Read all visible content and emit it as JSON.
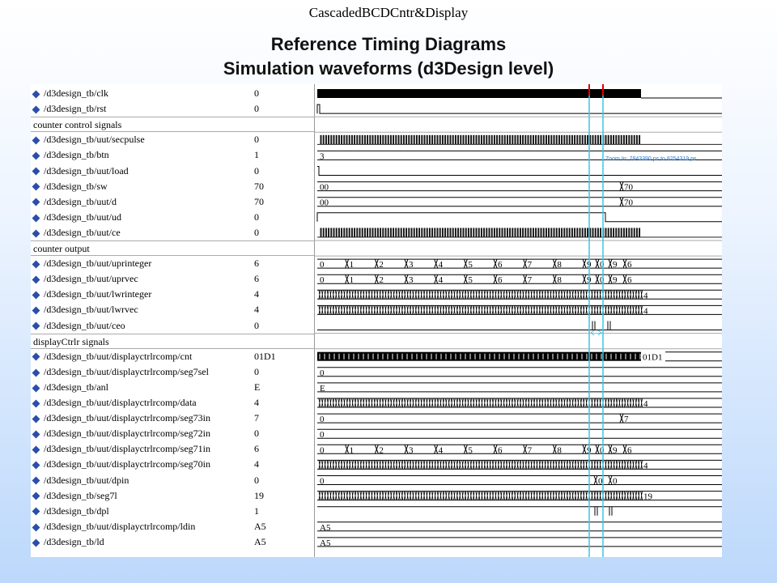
{
  "header_title": "CascadedBCDCntr&Display",
  "title_line1": "Reference Timing Diagrams",
  "title_line2": "Simulation waveforms (d3Design level)",
  "zoom_label": "Zoom In: 7843390 ps to 8254319 ps",
  "rows": [
    {
      "type": "signal",
      "name": "/d3design_tb/clk",
      "value": "0",
      "wave": "clk"
    },
    {
      "type": "signal",
      "name": "/d3design_tb/rst",
      "value": "0",
      "wave": "rst"
    },
    {
      "type": "section",
      "name": "counter control signals"
    },
    {
      "type": "signal",
      "name": "/d3design_tb/uut/secpulse",
      "value": "0",
      "wave": "pulse"
    },
    {
      "type": "signal",
      "name": "/d3design_tb/btn",
      "value": "1",
      "wave": "bus",
      "labels": [
        "3"
      ]
    },
    {
      "type": "signal",
      "name": "/d3design_tb/uut/load",
      "value": "0",
      "wave": "low"
    },
    {
      "type": "signal",
      "name": "/d3design_tb/sw",
      "value": "70",
      "wave": "bus",
      "labels": [
        "00",
        "70"
      ]
    },
    {
      "type": "signal",
      "name": "/d3design_tb/uut/d",
      "value": "70",
      "wave": "bus",
      "labels": [
        "00",
        "70"
      ]
    },
    {
      "type": "signal",
      "name": "/d3design_tb/uut/ud",
      "value": "0",
      "wave": "ud"
    },
    {
      "type": "signal",
      "name": "/d3design_tb/uut/ce",
      "value": "0",
      "wave": "pulse"
    },
    {
      "type": "section",
      "name": "counter output"
    },
    {
      "type": "signal",
      "name": "/d3design_tb/uut/uprinteger",
      "value": "6",
      "wave": "bus",
      "labels": [
        "0",
        "1",
        "2",
        "3",
        "4",
        "5",
        "6",
        "7",
        "8",
        "9",
        "0",
        "9",
        "6"
      ]
    },
    {
      "type": "signal",
      "name": "/d3design_tb/uut/uprvec",
      "value": "6",
      "wave": "bus",
      "labels": [
        "0",
        "1",
        "2",
        "3",
        "4",
        "5",
        "6",
        "7",
        "8",
        "9",
        "0",
        "9",
        "6"
      ]
    },
    {
      "type": "signal",
      "name": "/d3design_tb/uut/lwrinteger",
      "value": "4",
      "wave": "dense",
      "labels": [
        "4"
      ]
    },
    {
      "type": "signal",
      "name": "/d3design_tb/uut/lwrvec",
      "value": "4",
      "wave": "dense",
      "labels": [
        "4"
      ]
    },
    {
      "type": "signal",
      "name": "/d3design_tb/uut/ceo",
      "value": "0",
      "wave": "ceo"
    },
    {
      "type": "section",
      "name": "displayCtrlr signals"
    },
    {
      "type": "signal",
      "name": "/d3design_tb/uut/displayctrlrcomp/cnt",
      "value": "01D1",
      "wave": "cnt",
      "labels": [
        "01D1"
      ]
    },
    {
      "type": "signal",
      "name": "/d3design_tb/uut/displayctrlrcomp/seg7sel",
      "value": "0",
      "wave": "bus",
      "labels": [
        "0"
      ]
    },
    {
      "type": "signal",
      "name": "/d3design_tb/anl",
      "value": "E",
      "wave": "bus",
      "labels": [
        "E"
      ]
    },
    {
      "type": "signal",
      "name": "/d3design_tb/uut/displayctrlrcomp/data",
      "value": "4",
      "wave": "dense",
      "labels": [
        "4"
      ]
    },
    {
      "type": "signal",
      "name": "/d3design_tb/uut/displayctrlrcomp/seg73in",
      "value": "7",
      "wave": "bus",
      "labels": [
        "0",
        "7"
      ]
    },
    {
      "type": "signal",
      "name": "/d3design_tb/uut/displayctrlrcomp/seg72in",
      "value": "0",
      "wave": "bus",
      "labels": [
        "0"
      ]
    },
    {
      "type": "signal",
      "name": "/d3design_tb/uut/displayctrlrcomp/seg71in",
      "value": "6",
      "wave": "bus",
      "labels": [
        "0",
        "1",
        "2",
        "3",
        "4",
        "5",
        "6",
        "7",
        "8",
        "9",
        "0",
        "9",
        "6"
      ]
    },
    {
      "type": "signal",
      "name": "/d3design_tb/uut/displayctrlrcomp/seg70in",
      "value": "4",
      "wave": "dense",
      "labels": [
        "4"
      ]
    },
    {
      "type": "signal",
      "name": "/d3design_tb/uut/dpin",
      "value": "0",
      "wave": "bus",
      "labels": [
        "0",
        "0",
        "0"
      ]
    },
    {
      "type": "signal",
      "name": "/d3design_tb/seg7l",
      "value": "19",
      "wave": "dense",
      "labels": [
        "19"
      ]
    },
    {
      "type": "signal",
      "name": "/d3design_tb/dpl",
      "value": "1",
      "wave": "dpl"
    },
    {
      "type": "signal",
      "name": "/d3design_tb/uut/displayctrlrcomp/ldin",
      "value": "A5",
      "wave": "bus",
      "labels": [
        "A5"
      ]
    },
    {
      "type": "signal",
      "name": "/d3design_tb/ld",
      "value": "A5",
      "wave": "bus",
      "labels": [
        "A5"
      ]
    }
  ]
}
